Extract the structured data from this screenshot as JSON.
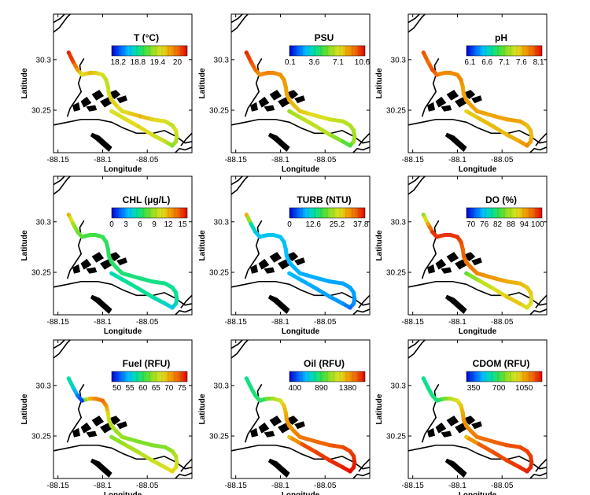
{
  "figure": {
    "panel_count": 9
  },
  "colormap": [
    "#0000cc",
    "#0060ff",
    "#00c0ff",
    "#00e0a0",
    "#40e040",
    "#a0e020",
    "#e0e020",
    "#f0a000",
    "#f06000",
    "#e00000"
  ],
  "panels": [
    {
      "title": "T (°C)",
      "colorbar_ticks": [
        "18.2",
        "18.8",
        "19.4",
        "20"
      ]
    },
    {
      "title": "PSU",
      "colorbar_ticks": [
        "0.1",
        "3.6",
        "7.1",
        "10.6"
      ]
    },
    {
      "title": "pH",
      "colorbar_ticks": [
        "6.1",
        "6.6",
        "7.1",
        "7.6",
        "8.1"
      ]
    },
    {
      "title": "CHL (µg/L)",
      "colorbar_ticks": [
        "0",
        "3",
        "6",
        "9",
        "12",
        "15"
      ]
    },
    {
      "title": "TURB (NTU)",
      "colorbar_ticks": [
        "0",
        "12.6",
        "25.2",
        "37.8"
      ]
    },
    {
      "title": "DO (%)",
      "colorbar_ticks": [
        "70",
        "76",
        "82",
        "88",
        "94",
        "100"
      ]
    },
    {
      "title": "Fuel (RFU)",
      "colorbar_ticks": [
        "50",
        "55",
        "60",
        "65",
        "70",
        "75"
      ]
    },
    {
      "title": "Oil (RFU)",
      "colorbar_ticks": [
        "400",
        "890",
        "1380"
      ]
    },
    {
      "title": "CDOM (RFU)",
      "colorbar_ticks": [
        "350",
        "700",
        "1050"
      ]
    }
  ],
  "chart_data": {
    "type": "scatter",
    "xlabel": "Longitude",
    "ylabel": "Latitude",
    "xlim": [
      -88.155,
      -88.0
    ],
    "ylim": [
      30.208,
      30.345
    ],
    "x_ticks": [
      "-88.15",
      "-88.1",
      "-88.05"
    ],
    "y_ticks": [
      "30.3",
      "30.25"
    ],
    "track": {
      "lon": [
        -88.138,
        -88.133,
        -88.128,
        -88.123,
        -88.119,
        -88.114,
        -88.108,
        -88.1,
        -88.096,
        -88.094,
        -88.093,
        -88.09,
        -88.085,
        -88.078,
        -88.07,
        -88.058,
        -88.045,
        -88.03,
        -88.022,
        -88.018,
        -88.017,
        -88.018,
        -88.022,
        -88.03,
        -88.045,
        -88.06,
        -88.076,
        -88.09
      ],
      "lat": [
        30.307,
        30.298,
        30.29,
        30.285,
        30.286,
        30.287,
        30.287,
        30.285,
        30.28,
        30.273,
        30.266,
        30.26,
        30.255,
        30.249,
        30.247,
        30.244,
        30.241,
        30.239,
        30.235,
        30.23,
        30.224,
        30.219,
        30.215,
        30.219,
        30.226,
        30.234,
        30.242,
        30.249
      ]
    },
    "series": [
      {
        "name": "T (°C)",
        "colorbar_ticks": [
          18.2,
          18.8,
          19.4,
          20.0
        ],
        "range": [
          18.0,
          20.3
        ],
        "values": [
          20.2,
          20.1,
          19.8,
          19.5,
          19.6,
          19.7,
          19.6,
          19.5,
          19.4,
          19.4,
          19.5,
          19.6,
          19.6,
          19.5,
          19.6,
          19.7,
          19.6,
          19.5,
          19.4,
          19.5,
          19.4,
          19.3,
          19.2,
          19.4,
          19.5,
          19.6,
          19.5,
          19.5
        ]
      },
      {
        "name": "PSU",
        "colorbar_ticks": [
          0.1,
          3.6,
          7.1,
          10.6
        ],
        "range": [
          0.0,
          11.0
        ],
        "values": [
          10.5,
          10.0,
          9.5,
          8.8,
          9.0,
          9.2,
          9.0,
          8.8,
          8.7,
          8.6,
          8.5,
          8.4,
          8.0,
          7.8,
          7.6,
          7.3,
          7.0,
          6.6,
          6.4,
          6.2,
          6.1,
          6.0,
          5.0,
          5.2,
          6.4,
          6.8,
          6.6,
          6.0
        ]
      },
      {
        "name": "pH",
        "colorbar_ticks": [
          6.1,
          6.6,
          7.1,
          7.6,
          8.1
        ],
        "range": [
          6.0,
          8.2
        ],
        "values": [
          8.0,
          7.9,
          8.0,
          7.9,
          7.8,
          7.8,
          7.8,
          7.8,
          7.8,
          7.7,
          7.7,
          7.7,
          7.7,
          7.7,
          7.7,
          7.7,
          7.7,
          7.7,
          7.6,
          7.6,
          7.6,
          7.7,
          7.8,
          7.7,
          7.6,
          7.6,
          7.6,
          7.5
        ]
      },
      {
        "name": "CHL (µg/L)",
        "colorbar_ticks": [
          0,
          3,
          6,
          9,
          12,
          15
        ],
        "range": [
          0,
          16
        ],
        "values": [
          12.0,
          9.0,
          8.0,
          7.5,
          7.0,
          7.2,
          7.0,
          6.8,
          6.5,
          6.5,
          6.6,
          6.5,
          6.3,
          6.2,
          6.0,
          6.0,
          5.8,
          5.8,
          5.6,
          5.6,
          5.5,
          5.0,
          4.0,
          4.6,
          5.4,
          5.6,
          5.6,
          4.8
        ]
      },
      {
        "name": "TURB (NTU)",
        "colorbar_ticks": [
          0,
          12.6,
          25.2,
          37.8
        ],
        "range": [
          0,
          40
        ],
        "values": [
          30.0,
          14.0,
          10.0,
          9.0,
          9.5,
          9.8,
          9.6,
          9.4,
          9.2,
          9.0,
          8.8,
          8.6,
          8.4,
          8.2,
          8.0,
          8.0,
          7.8,
          7.6,
          7.6,
          7.4,
          7.0,
          6.6,
          5.0,
          6.6,
          7.4,
          7.8,
          8.0,
          9.0
        ]
      },
      {
        "name": "DO (%)",
        "colorbar_ticks": [
          70,
          76,
          82,
          88,
          94,
          100
        ],
        "range": [
          68,
          102
        ],
        "values": [
          86.0,
          94.0,
          100.0,
          100.0,
          100.0,
          100.0,
          100.0,
          100.0,
          99.0,
          98.0,
          98.0,
          97.0,
          97.0,
          96.0,
          95.0,
          95.0,
          94.0,
          93.0,
          92.0,
          92.0,
          91.0,
          91.0,
          90.0,
          92.0,
          92.0,
          90.0,
          88.0,
          84.0
        ]
      },
      {
        "name": "Fuel (RFU)",
        "colorbar_ticks": [
          50,
          55,
          60,
          65,
          70,
          75
        ],
        "range": [
          48,
          77
        ],
        "values": [
          58.0,
          56.0,
          52.0,
          50.0,
          63.0,
          70.0,
          72.0,
          73.0,
          71.0,
          68.0,
          66.0,
          65.0,
          64.0,
          64.0,
          63.0,
          63.0,
          63.0,
          63.0,
          64.0,
          65.0,
          66.0,
          67.0,
          68.0,
          67.0,
          66.0,
          65.0,
          64.0,
          63.0
        ]
      },
      {
        "name": "Oil (RFU)",
        "colorbar_ticks": [
          400,
          890,
          1380
        ],
        "range": [
          300,
          1700
        ],
        "values": [
          800.0,
          820.0,
          840.0,
          860.0,
          900.0,
          1000.0,
          1100.0,
          1200.0,
          1300.0,
          1350.0,
          1400.0,
          1420.0,
          1450.0,
          1480.0,
          1500.0,
          1520.0,
          1550.0,
          1580.0,
          1600.0,
          1620.0,
          1650.0,
          1660.0,
          1680.0,
          1650.0,
          1620.0,
          1600.0,
          1560.0,
          1300.0
        ]
      },
      {
        "name": "CDOM (RFU)",
        "colorbar_ticks": [
          350,
          700,
          1050
        ],
        "range": [
          250,
          1300
        ],
        "values": [
          620.0,
          630.0,
          640.0,
          650.0,
          700.0,
          780.0,
          860.0,
          950.0,
          1000.0,
          1050.0,
          1080.0,
          1100.0,
          1120.0,
          1140.0,
          1160.0,
          1180.0,
          1200.0,
          1210.0,
          1220.0,
          1230.0,
          1240.0,
          1250.0,
          1260.0,
          1240.0,
          1220.0,
          1200.0,
          1180.0,
          1000.0
        ]
      }
    ]
  }
}
